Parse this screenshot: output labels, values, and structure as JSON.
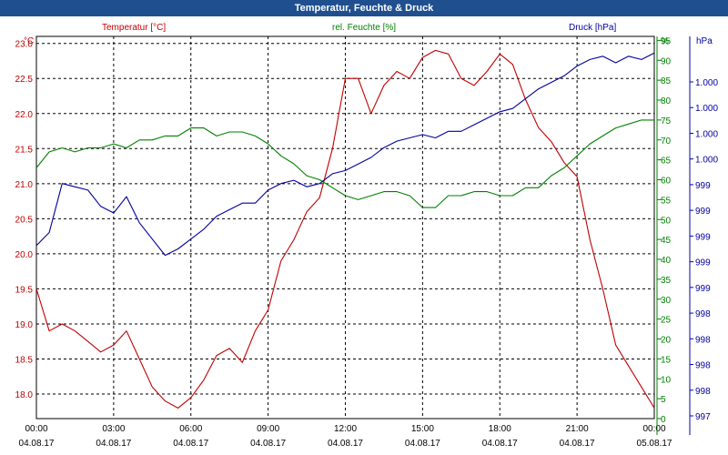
{
  "title": "Temperatur, Feuchte & Druck",
  "colors": {
    "temperature": "#c00000",
    "humidity": "#008000",
    "pressure": "#0000a0",
    "titlebar": "#1f4f8f"
  },
  "chart_data": {
    "type": "line",
    "title": "Temperatur, Feuchte & Druck",
    "grid": true,
    "x_ticks": [
      {
        "time": "00:00",
        "date": "04.08.17"
      },
      {
        "time": "03:00",
        "date": "04.08.17"
      },
      {
        "time": "06:00",
        "date": "04.08.17"
      },
      {
        "time": "09:00",
        "date": "04.08.17"
      },
      {
        "time": "12:00",
        "date": "04.08.17"
      },
      {
        "time": "15:00",
        "date": "04.08.17"
      },
      {
        "time": "18:00",
        "date": "04.08.17"
      },
      {
        "time": "21:00",
        "date": "04.08.17"
      },
      {
        "time": "00:00",
        "date": "05.08.17"
      }
    ],
    "axes": {
      "temperature": {
        "label": "Temperatur [°C]",
        "unit": "°C",
        "ylim": [
          17.65,
          23.1
        ],
        "ticks": [
          "23.0",
          "22.5",
          "22.0",
          "21.5",
          "21.0",
          "20.5",
          "20.0",
          "19.5",
          "19.0",
          "18.5",
          "18.0"
        ]
      },
      "humidity": {
        "label": "rel. Feuchte [%]",
        "unit": "%",
        "ylim": [
          0,
          96
        ],
        "ticks": [
          "95",
          "90",
          "85",
          "80",
          "75",
          "70",
          "65",
          "60",
          "55",
          "50",
          "45",
          "40",
          "35",
          "30",
          "25",
          "20",
          "15",
          "10",
          "5",
          "0"
        ]
      },
      "pressure": {
        "label": "Druck [hPa]",
        "unit": "hPa",
        "ticks": [
          "1.000",
          "1.000",
          "1.000",
          "1.000",
          "999",
          "999",
          "999",
          "999",
          "999",
          "998",
          "998",
          "998",
          "998",
          "997"
        ]
      }
    },
    "x_hours": [
      0,
      0.5,
      1,
      1.5,
      2,
      2.5,
      3,
      3.5,
      4,
      4.5,
      5,
      5.5,
      6,
      6.5,
      7,
      7.5,
      8,
      8.5,
      9,
      9.5,
      10,
      10.5,
      11,
      11.5,
      12,
      12.5,
      13,
      13.5,
      14,
      14.5,
      15,
      15.5,
      16,
      16.5,
      17,
      17.5,
      18,
      18.5,
      19,
      19.5,
      20,
      20.5,
      21,
      21.5,
      22,
      22.5,
      23,
      23.5,
      24
    ],
    "series": [
      {
        "name": "Temperatur [°C]",
        "axis": "temperature",
        "values": [
          19.5,
          18.9,
          19.0,
          18.9,
          18.75,
          18.6,
          18.7,
          18.9,
          18.5,
          18.1,
          17.9,
          17.8,
          17.95,
          18.2,
          18.55,
          18.65,
          18.45,
          18.9,
          19.2,
          19.9,
          20.2,
          20.6,
          20.8,
          21.5,
          22.5,
          22.5,
          22.0,
          22.4,
          22.6,
          22.5,
          22.8,
          22.9,
          22.85,
          22.5,
          22.4,
          22.6,
          22.85,
          22.7,
          22.2,
          21.8,
          21.6,
          21.3,
          21.1,
          20.2,
          19.5,
          18.7,
          18.4,
          18.1,
          17.8
        ]
      },
      {
        "name": "rel. Feuchte [%]",
        "axis": "humidity",
        "values": [
          63,
          67,
          68,
          67,
          68,
          68,
          69,
          68,
          70,
          70,
          71,
          71,
          73,
          73,
          71,
          72,
          72,
          71,
          69,
          66,
          64,
          61,
          60,
          58,
          56,
          55,
          56,
          57,
          57,
          56,
          53,
          53,
          56,
          56,
          57,
          57,
          56,
          56,
          58,
          58,
          61,
          63,
          66,
          69,
          71,
          73,
          74,
          75,
          75
        ]
      },
      {
        "name": "Druck [hPa]",
        "axis": "pressure",
        "values": [
          5.3,
          5.7,
          7.2,
          7.1,
          7.0,
          6.5,
          6.3,
          6.8,
          6.0,
          5.5,
          5.0,
          5.2,
          5.5,
          5.8,
          6.2,
          6.4,
          6.6,
          6.6,
          7.0,
          7.2,
          7.3,
          7.1,
          7.2,
          7.5,
          7.6,
          7.8,
          8.0,
          8.3,
          8.5,
          8.6,
          8.7,
          8.6,
          8.8,
          8.8,
          9.0,
          9.2,
          9.4,
          9.5,
          9.8,
          10.1,
          10.3,
          10.5,
          10.8,
          11.0,
          11.1,
          10.9,
          11.1,
          11.0,
          11.2
        ]
      }
    ]
  }
}
